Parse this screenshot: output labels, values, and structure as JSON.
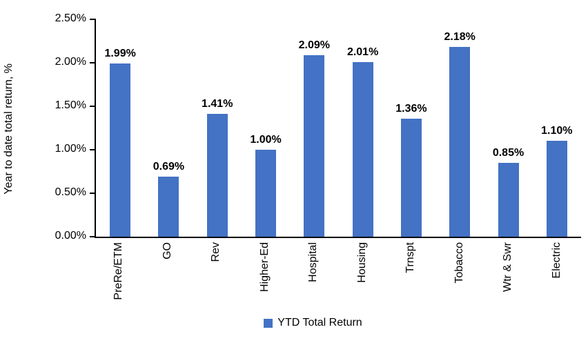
{
  "chart_data": {
    "type": "bar",
    "title": "",
    "ylabel": "Year to date total return, %",
    "xlabel": "",
    "categories": [
      "PreRe/ETM",
      "GO",
      "Rev",
      "Higher-Ed",
      "Hospital",
      "Housing",
      "Trnspt",
      "Tobacco",
      "Wtr & Swr",
      "Electric"
    ],
    "values": [
      1.99,
      0.69,
      1.41,
      1.0,
      2.09,
      2.01,
      1.36,
      2.18,
      0.85,
      1.1
    ],
    "value_labels": [
      "1.99%",
      "0.69%",
      "1.41%",
      "1.00%",
      "2.09%",
      "2.01%",
      "1.36%",
      "2.18%",
      "0.85%",
      "1.10%"
    ],
    "ylim": [
      0,
      2.5
    ],
    "ytick_labels": [
      "0.00%",
      "0.50%",
      "1.00%",
      "1.50%",
      "2.00%",
      "2.50%"
    ],
    "ytick_values": [
      0.0,
      0.5,
      1.0,
      1.5,
      2.0,
      2.5
    ],
    "grid": false,
    "legend_position": "bottom",
    "legend": {
      "label": "YTD Total Return"
    },
    "colors": {
      "bar": "#4472C4",
      "axis": "#000000",
      "text": "#000000",
      "background": "#FFFFFF"
    }
  }
}
